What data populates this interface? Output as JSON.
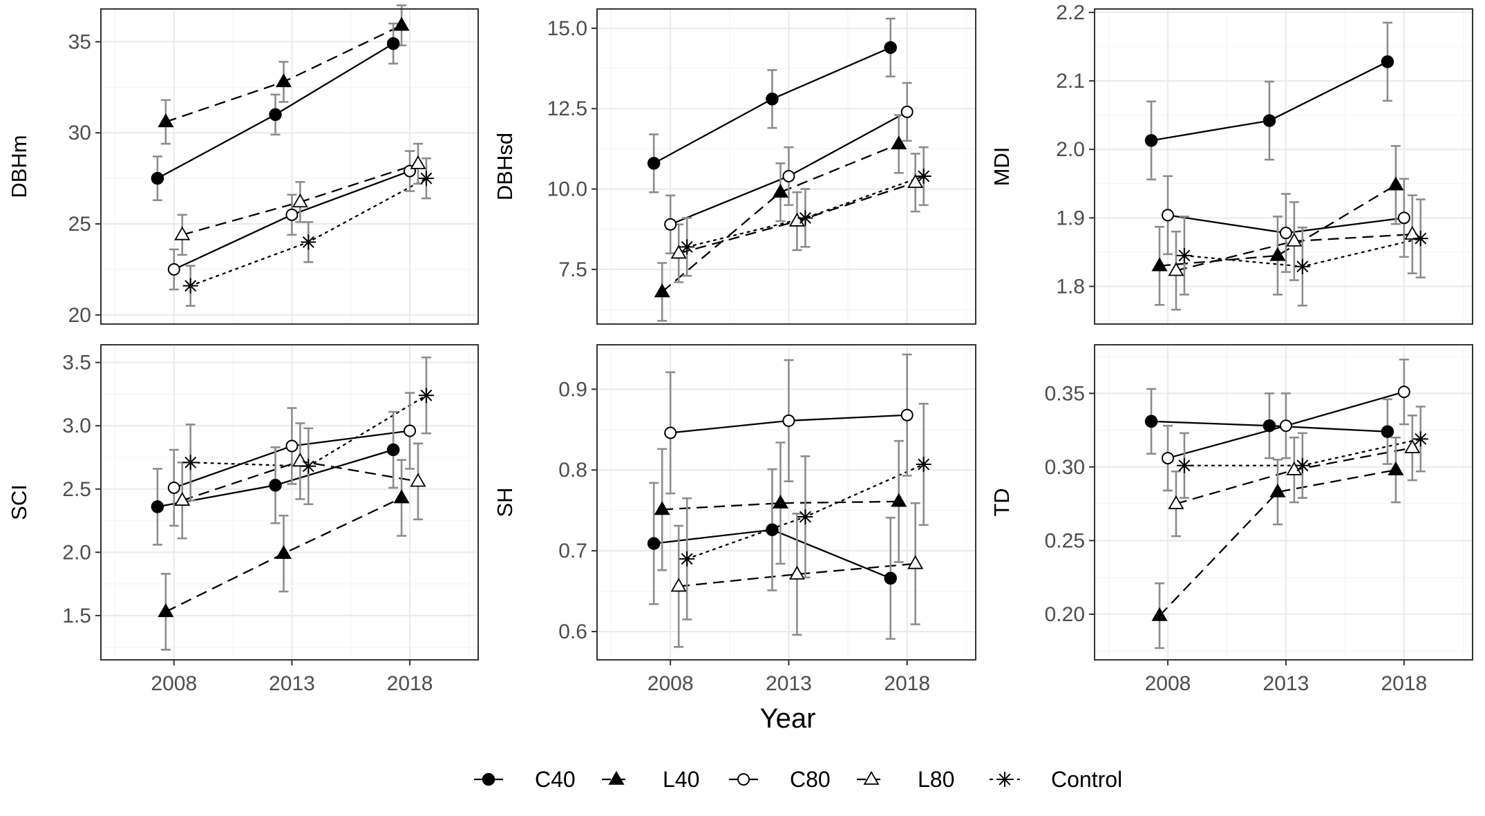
{
  "chart_data": [
    {
      "type": "line",
      "ylabel": "DBHm",
      "x": [
        2008,
        2013,
        2018
      ],
      "ylim": [
        19.5,
        36.8
      ],
      "yticks": [
        20,
        25,
        30,
        35
      ],
      "ytick_labels": [
        "20",
        "25",
        "30",
        "35"
      ],
      "series": [
        {
          "name": "C40",
          "values": [
            27.5,
            31.0,
            34.9
          ],
          "err": [
            1.2,
            1.1,
            1.1
          ]
        },
        {
          "name": "L40",
          "values": [
            30.6,
            32.8,
            35.9
          ],
          "err": [
            1.2,
            1.1,
            1.1
          ]
        },
        {
          "name": "C80",
          "values": [
            22.5,
            25.5,
            27.9
          ],
          "err": [
            1.1,
            1.1,
            1.1
          ]
        },
        {
          "name": "L80",
          "values": [
            24.4,
            26.2,
            28.3
          ],
          "err": [
            1.1,
            1.1,
            1.1
          ]
        },
        {
          "name": "Control",
          "values": [
            21.6,
            24.0,
            27.5
          ],
          "err": [
            1.1,
            1.1,
            1.1
          ]
        }
      ]
    },
    {
      "type": "line",
      "ylabel": "DBHsd",
      "x": [
        2008,
        2013,
        2018
      ],
      "ylim": [
        5.8,
        15.6
      ],
      "yticks": [
        7.5,
        10.0,
        12.5,
        15.0
      ],
      "ytick_labels": [
        "7.5",
        "10.0",
        "12.5",
        "15.0"
      ],
      "series": [
        {
          "name": "C40",
          "values": [
            10.8,
            12.8,
            14.4
          ],
          "err": [
            0.9,
            0.9,
            0.9
          ]
        },
        {
          "name": "L40",
          "values": [
            6.8,
            9.9,
            11.4
          ],
          "err": [
            0.9,
            0.9,
            0.9
          ]
        },
        {
          "name": "C80",
          "values": [
            8.9,
            10.4,
            12.4
          ],
          "err": [
            0.9,
            0.9,
            0.9
          ]
        },
        {
          "name": "L80",
          "values": [
            8.0,
            9.0,
            10.2
          ],
          "err": [
            0.9,
            0.9,
            0.9
          ]
        },
        {
          "name": "Control",
          "values": [
            8.2,
            9.1,
            10.4
          ],
          "err": [
            0.9,
            0.9,
            0.9
          ]
        }
      ]
    },
    {
      "type": "line",
      "ylabel": "MDI",
      "x": [
        2008,
        2013,
        2018
      ],
      "ylim": [
        1.745,
        2.205
      ],
      "yticks": [
        1.8,
        1.9,
        2.0,
        2.1,
        2.2
      ],
      "ytick_labels": [
        "1.8",
        "1.9",
        "2.0",
        "2.1",
        "2.2"
      ],
      "series": [
        {
          "name": "C40",
          "values": [
            2.013,
            2.042,
            2.128
          ],
          "err": [
            0.057,
            0.057,
            0.057
          ]
        },
        {
          "name": "L40",
          "values": [
            1.83,
            1.845,
            1.948
          ],
          "err": [
            0.057,
            0.057,
            0.057
          ]
        },
        {
          "name": "C80",
          "values": [
            1.904,
            1.878,
            1.9
          ],
          "err": [
            0.057,
            0.057,
            0.057
          ]
        },
        {
          "name": "L80",
          "values": [
            1.823,
            1.866,
            1.876
          ],
          "err": [
            0.057,
            0.057,
            0.057
          ]
        },
        {
          "name": "Control",
          "values": [
            1.845,
            1.829,
            1.87
          ],
          "err": [
            0.057,
            0.057,
            0.057
          ]
        }
      ]
    },
    {
      "type": "line",
      "ylabel": "SCI",
      "x": [
        2008,
        2013,
        2018
      ],
      "ylim": [
        1.15,
        3.64
      ],
      "yticks": [
        1.5,
        2.0,
        2.5,
        3.0,
        3.5
      ],
      "ytick_labels": [
        "1.5",
        "2.0",
        "2.5",
        "3.0",
        "3.5"
      ],
      "series": [
        {
          "name": "C40",
          "values": [
            2.36,
            2.53,
            2.81
          ],
          "err": [
            0.3,
            0.3,
            0.3
          ]
        },
        {
          "name": "L40",
          "values": [
            1.53,
            1.99,
            2.43
          ],
          "err": [
            0.3,
            0.3,
            0.3
          ]
        },
        {
          "name": "C80",
          "values": [
            2.51,
            2.84,
            2.96
          ],
          "err": [
            0.3,
            0.3,
            0.3
          ]
        },
        {
          "name": "L80",
          "values": [
            2.41,
            2.72,
            2.56
          ],
          "err": [
            0.3,
            0.3,
            0.3
          ]
        },
        {
          "name": "Control",
          "values": [
            2.71,
            2.68,
            3.24
          ],
          "err": [
            0.3,
            0.3,
            0.3
          ]
        }
      ]
    },
    {
      "type": "line",
      "ylabel": "SH",
      "x": [
        2008,
        2013,
        2018
      ],
      "ylim": [
        0.565,
        0.955
      ],
      "yticks": [
        0.6,
        0.7,
        0.8,
        0.9
      ],
      "ytick_labels": [
        "0.6",
        "0.7",
        "0.8",
        "0.9"
      ],
      "series": [
        {
          "name": "C40",
          "values": [
            0.709,
            0.726,
            0.666
          ],
          "err": [
            0.075,
            0.075,
            0.075
          ]
        },
        {
          "name": "L40",
          "values": [
            0.751,
            0.759,
            0.761
          ],
          "err": [
            0.075,
            0.075,
            0.075
          ]
        },
        {
          "name": "C80",
          "values": [
            0.846,
            0.861,
            0.868
          ],
          "err": [
            0.075,
            0.075,
            0.075
          ]
        },
        {
          "name": "L80",
          "values": [
            0.656,
            0.671,
            0.684
          ],
          "err": [
            0.075,
            0.075,
            0.075
          ]
        },
        {
          "name": "Control",
          "values": [
            0.69,
            0.742,
            0.807
          ],
          "err": [
            0.075,
            0.075,
            0.075
          ]
        }
      ]
    },
    {
      "type": "line",
      "ylabel": "TD",
      "x": [
        2008,
        2013,
        2018
      ],
      "ylim": [
        0.169,
        0.383
      ],
      "yticks": [
        0.2,
        0.25,
        0.3,
        0.35
      ],
      "ytick_labels": [
        "0.20",
        "0.25",
        "0.30",
        "0.35"
      ],
      "series": [
        {
          "name": "C40",
          "values": [
            0.331,
            0.328,
            0.324
          ],
          "err": [
            0.022,
            0.022,
            0.022
          ]
        },
        {
          "name": "L40",
          "values": [
            0.199,
            0.283,
            0.298
          ],
          "err": [
            0.022,
            0.022,
            0.022
          ]
        },
        {
          "name": "C80",
          "values": [
            0.306,
            0.328,
            0.351
          ],
          "err": [
            0.022,
            0.022,
            0.022
          ]
        },
        {
          "name": "L80",
          "values": [
            0.275,
            0.298,
            0.313
          ],
          "err": [
            0.022,
            0.022,
            0.022
          ]
        },
        {
          "name": "Control",
          "values": [
            0.301,
            0.301,
            0.319
          ],
          "err": [
            0.022,
            0.022,
            0.022
          ]
        }
      ]
    }
  ],
  "x_axis": {
    "label": "Year",
    "ticks": [
      2008,
      2013,
      2018
    ],
    "tick_labels": [
      "2008",
      "2013",
      "2018"
    ],
    "range": [
      2004.9,
      2020.9
    ]
  },
  "series_style": [
    {
      "name": "C40",
      "marker": "filled-circle",
      "line": "solid"
    },
    {
      "name": "L40",
      "marker": "filled-triangle",
      "line": "dashed"
    },
    {
      "name": "C80",
      "marker": "open-circle",
      "line": "solid"
    },
    {
      "name": "L80",
      "marker": "open-triangle",
      "line": "dashed"
    },
    {
      "name": "Control",
      "marker": "asterisk",
      "line": "dotted"
    }
  ],
  "legend": {
    "position": "bottom",
    "items": [
      "C40",
      "L40",
      "C80",
      "L80",
      "Control"
    ]
  },
  "colors": {
    "marker": "#000000",
    "errorbar": "#8c8c8c",
    "grid_major": "#ebebeb",
    "grid_minor": "#f5f5f5",
    "panel_border": "#333333"
  }
}
